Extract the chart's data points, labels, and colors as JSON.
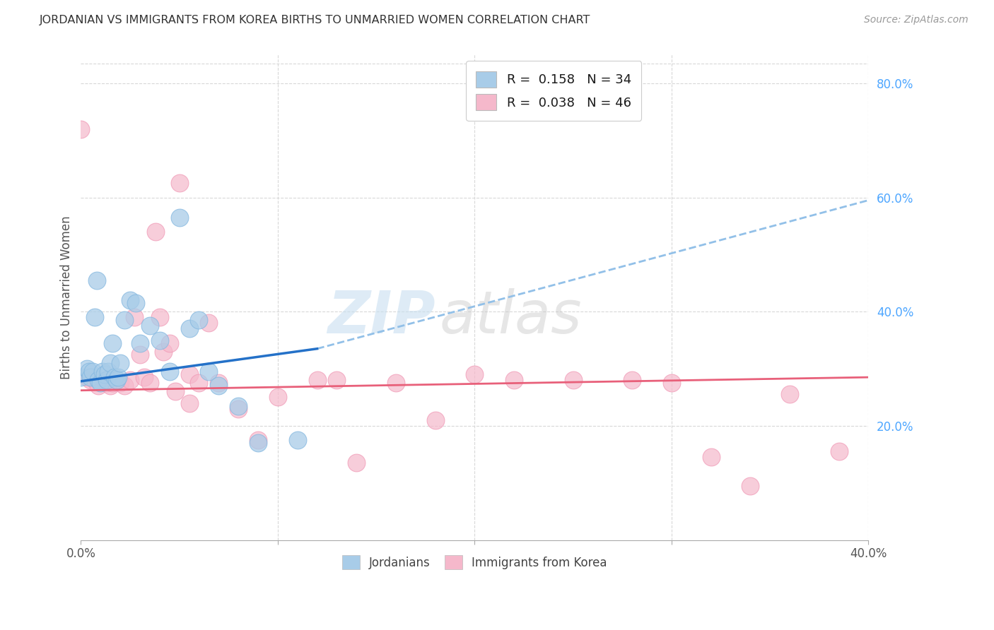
{
  "title": "JORDANIAN VS IMMIGRANTS FROM KOREA BIRTHS TO UNMARRIED WOMEN CORRELATION CHART",
  "source": "Source: ZipAtlas.com",
  "ylabel": "Births to Unmarried Women",
  "xlim": [
    0.0,
    0.4
  ],
  "ylim": [
    0.0,
    0.85
  ],
  "jordanian_color": "#a8cce8",
  "jordanian_edge": "#85b8e0",
  "korea_color": "#f5b8cb",
  "korea_edge": "#f098b5",
  "line_jordan_color": "#2471c8",
  "line_korea_color": "#e8607a",
  "dashed_jordan_color": "#92c0e8",
  "grid_color": "#d8d8d8",
  "right_tick_color": "#4da6ff",
  "title_color": "#333333",
  "source_color": "#999999",
  "watermark_blue": "#c8dff0",
  "watermark_gray": "#c8c8c8",
  "jordanians_x": [
    0.0,
    0.003,
    0.004,
    0.005,
    0.006,
    0.007,
    0.008,
    0.009,
    0.01,
    0.011,
    0.012,
    0.013,
    0.014,
    0.015,
    0.016,
    0.017,
    0.018,
    0.019,
    0.02,
    0.022,
    0.025,
    0.028,
    0.03,
    0.035,
    0.04,
    0.045,
    0.05,
    0.055,
    0.06,
    0.065,
    0.07,
    0.08,
    0.09,
    0.11
  ],
  "jordanians_y": [
    0.285,
    0.3,
    0.295,
    0.285,
    0.295,
    0.39,
    0.455,
    0.28,
    0.275,
    0.295,
    0.29,
    0.28,
    0.295,
    0.31,
    0.345,
    0.285,
    0.28,
    0.285,
    0.31,
    0.385,
    0.42,
    0.415,
    0.345,
    0.375,
    0.35,
    0.295,
    0.565,
    0.37,
    0.385,
    0.295,
    0.27,
    0.235,
    0.17,
    0.175
  ],
  "korea_x": [
    0.0,
    0.003,
    0.005,
    0.007,
    0.009,
    0.01,
    0.012,
    0.013,
    0.015,
    0.016,
    0.018,
    0.02,
    0.022,
    0.025,
    0.027,
    0.03,
    0.032,
    0.035,
    0.04,
    0.042,
    0.045,
    0.05,
    0.055,
    0.06,
    0.065,
    0.07,
    0.08,
    0.09,
    0.1,
    0.12,
    0.13,
    0.14,
    0.16,
    0.18,
    0.2,
    0.22,
    0.25,
    0.28,
    0.3,
    0.32,
    0.34,
    0.36,
    0.385,
    0.038,
    0.048,
    0.055
  ],
  "korea_y": [
    0.72,
    0.285,
    0.28,
    0.28,
    0.27,
    0.28,
    0.28,
    0.275,
    0.27,
    0.275,
    0.28,
    0.275,
    0.27,
    0.28,
    0.39,
    0.325,
    0.285,
    0.275,
    0.39,
    0.33,
    0.345,
    0.625,
    0.29,
    0.275,
    0.38,
    0.275,
    0.23,
    0.175,
    0.25,
    0.28,
    0.28,
    0.135,
    0.275,
    0.21,
    0.29,
    0.28,
    0.28,
    0.28,
    0.275,
    0.145,
    0.095,
    0.255,
    0.155,
    0.54,
    0.26,
    0.24
  ],
  "solid_line_end_x": 0.12,
  "jordan_line_y0": 0.278,
  "jordan_line_y_at_12pct": 0.335,
  "jordan_line_y_at_40pct": 0.595,
  "korea_line_y0": 0.262,
  "korea_line_y_at_40pct": 0.285
}
